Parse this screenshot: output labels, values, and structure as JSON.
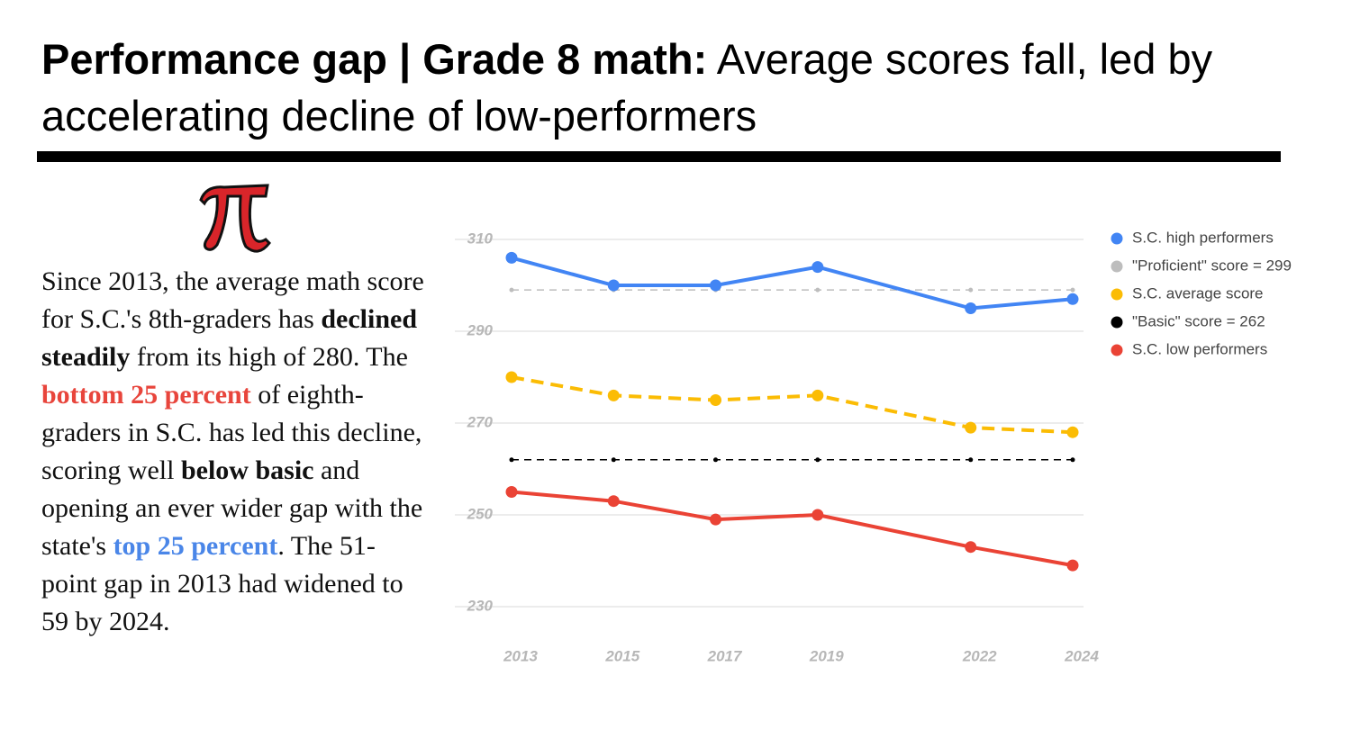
{
  "title": {
    "bold": "Performance gap | Grade 8 math:",
    "rest": "Average scores fall, led by accelerating decline of low-performers"
  },
  "body": {
    "segments": [
      {
        "text": "Since 2013, the average math score for S.C.'s 8th-graders has "
      },
      {
        "text": "declined steadily",
        "bold": true
      },
      {
        "text": " from its high of 280. The "
      },
      {
        "text": "bottom 25 percent",
        "bold": true,
        "color": "#e8453c"
      },
      {
        "text": " of eighth-graders in S.C. has led this decline, scoring well "
      },
      {
        "text": "below basic",
        "bold": true
      },
      {
        "text": " and opening an ever wider gap with the state's "
      },
      {
        "text": "top 25 percent",
        "bold": true,
        "color": "#4a86e8"
      },
      {
        "text": ". The 51-point gap in 2013 had widened to 59 by 2024."
      }
    ]
  },
  "chart_data": {
    "type": "line",
    "x": [
      2013,
      2015,
      2017,
      2019,
      2022,
      2024
    ],
    "xlim": [
      2013,
      2024
    ],
    "xticks": [
      2013,
      2015,
      2017,
      2019,
      2022,
      2024
    ],
    "ylim": [
      230,
      310
    ],
    "yticks": [
      230,
      250,
      270,
      290,
      310
    ],
    "grid": true,
    "legend": "right",
    "series": [
      {
        "name": "S.C. high performers",
        "color": "#4285f4",
        "values": [
          306,
          300,
          300,
          304,
          295,
          297
        ]
      },
      {
        "name": "\"Proficient\" score = 299",
        "color": "#bdbdbd",
        "dash": true,
        "values": [
          299,
          299,
          299,
          299,
          299,
          299
        ]
      },
      {
        "name": "S.C. average score",
        "color": "#fbbc04",
        "dash": true,
        "values": [
          280,
          276,
          275,
          276,
          269,
          268
        ]
      },
      {
        "name": "\"Basic\" score = 262",
        "color": "#000000",
        "dash": true,
        "values": [
          262,
          262,
          262,
          262,
          262,
          262
        ]
      },
      {
        "name": "S.C. low performers",
        "color": "#ea4335",
        "values": [
          255,
          253,
          249,
          250,
          243,
          239
        ]
      }
    ]
  }
}
